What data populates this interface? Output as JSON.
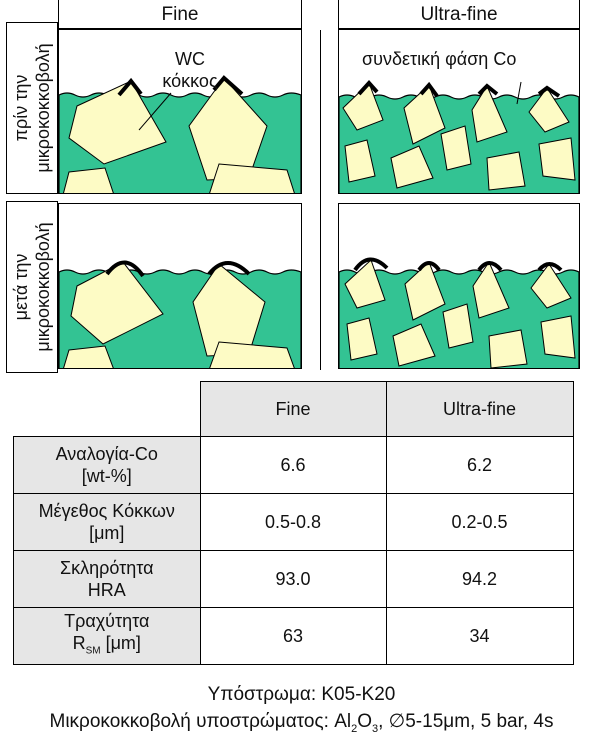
{
  "headers": {
    "fine": "Fine",
    "ultra_fine": "Ultra-fine"
  },
  "side_labels": {
    "before_line1": "πρίν την",
    "before_line2": "μικροκοκκοβολή",
    "after_line1": "μετά την",
    "after_line2": "μικροκοκκοβολή"
  },
  "annotations": {
    "wc_line1": "WC",
    "wc_line2": "κόκκος",
    "binder": "συνδετική φάση Co"
  },
  "colors": {
    "binder": "#33c393",
    "grain": "#fdfbc5",
    "edge": "#000000",
    "header_fill": "#e6e6e6"
  },
  "table": {
    "col_headers": [
      "Fine",
      "Ultra-fine"
    ],
    "rows": [
      {
        "label1": "Αναλογία-Co",
        "label2": "[wt-%]",
        "fine": "6.6",
        "ultra": "6.2"
      },
      {
        "label1": "Μέγεθος Κόκκων",
        "label2": "[μm]",
        "fine": "0.5-0.8",
        "ultra": "0.2-0.5"
      },
      {
        "label1": "Σκληρότητα",
        "label2": "HRA",
        "fine": "93.0",
        "ultra": "94.2"
      },
      {
        "label1": "Τραχύτητα",
        "label2_main": "R",
        "label2_sub": "SM",
        "label2_tail": " [μm]",
        "fine": "63",
        "ultra": "34"
      }
    ]
  },
  "footer": {
    "line1": "Υπόστρωμα: K05-K20",
    "line2_a": "Μικροκοκκοβολή υποστρώματος: Al",
    "line2_sub1": "2",
    "line2_b": "O",
    "line2_sub2": "3",
    "line2_c": ", ∅5-15μm, 5 bar, 4s"
  }
}
